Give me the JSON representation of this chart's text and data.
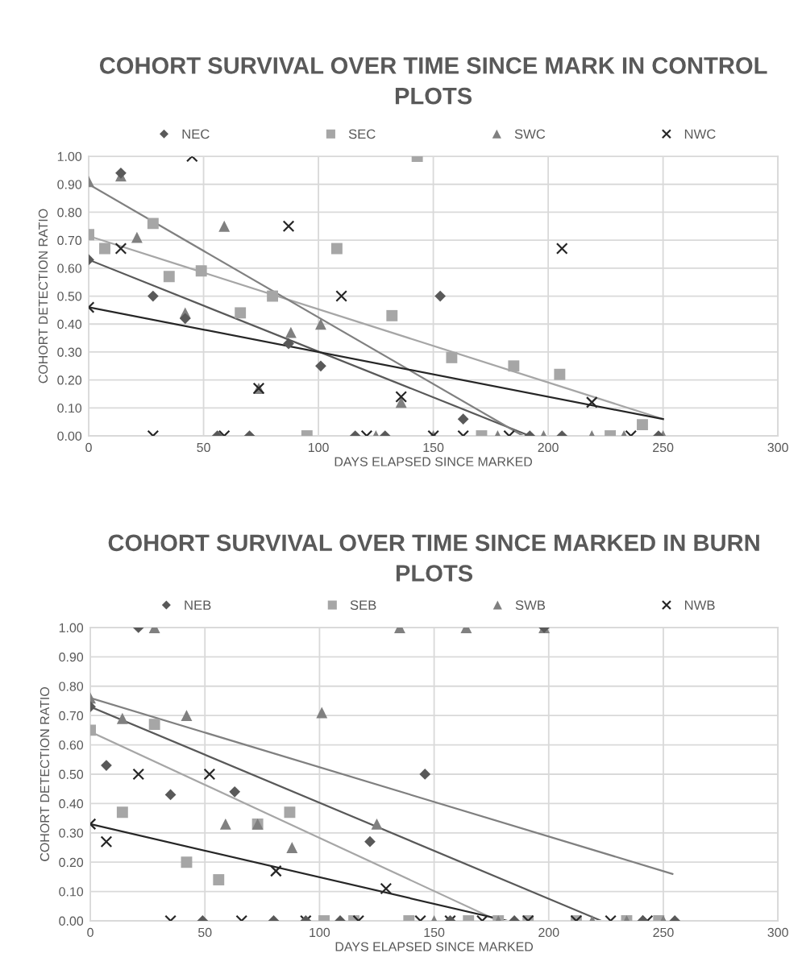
{
  "chart_data": [
    {
      "type": "scatter",
      "title": "COHORT SURVIVAL OVER TIME SINCE MARK IN CONTROL PLOTS",
      "xlabel": "DAYS ELAPSED SINCE MARKED",
      "ylabel": "COHORT DETECTION RATIO",
      "xlim": [
        0,
        300
      ],
      "xticks": [
        0,
        50,
        100,
        150,
        200,
        250,
        300
      ],
      "ylim": [
        0,
        1
      ],
      "yticks": [
        {
          "value": 0,
          "label": "0.00"
        },
        {
          "value": 0.1,
          "label": "0.10"
        },
        {
          "value": 0.2,
          "label": "0.20"
        },
        {
          "value": 0.3,
          "label": "0.30"
        },
        {
          "value": 0.4,
          "label": "0.40"
        },
        {
          "value": 0.5,
          "label": "0.50"
        },
        {
          "value": 0.6,
          "label": "0.60"
        },
        {
          "value": 0.7,
          "label": "0.70"
        },
        {
          "value": 0.8,
          "label": "0.80"
        },
        {
          "value": 0.9,
          "label": "0.90"
        },
        {
          "value": 1,
          "label": "1.00"
        }
      ],
      "grid": true,
      "legend": "top",
      "series": [
        {
          "name": "NEC",
          "color": "#595959",
          "marker": "diamond",
          "x": [
            0,
            14,
            28,
            42,
            56,
            70,
            87,
            101,
            116,
            129,
            153,
            163,
            192,
            206,
            248
          ],
          "values": [
            0.63,
            0.94,
            0.5,
            0.42,
            0,
            0,
            0.33,
            0.25,
            0,
            0,
            0.5,
            0.06,
            0,
            0,
            0
          ]
        },
        {
          "name": "SEC",
          "color": "#a6a6a6",
          "marker": "square",
          "x": [
            0,
            7,
            28,
            35,
            49,
            66,
            80,
            95,
            108,
            132,
            143,
            158,
            171,
            185,
            205,
            227,
            241
          ],
          "values": [
            0.72,
            0.67,
            0.76,
            0.57,
            0.59,
            0.44,
            0.5,
            0,
            0.67,
            0.43,
            1.0,
            0.28,
            0,
            0.25,
            0.22,
            0,
            0.04
          ]
        },
        {
          "name": "SWC",
          "color": "#808080",
          "marker": "triangle",
          "x": [
            0,
            14,
            21,
            42,
            59,
            74,
            88,
            101,
            125,
            136,
            150,
            178,
            198,
            219,
            233,
            250
          ],
          "values": [
            0.91,
            0.93,
            0.71,
            0.44,
            0.75,
            0.17,
            0.37,
            0.4,
            0,
            0.12,
            0,
            0,
            0,
            0,
            0,
            0
          ]
        },
        {
          "name": "NWC",
          "color": "#262626",
          "marker": "cross",
          "x": [
            0,
            14,
            28,
            45,
            59,
            74,
            87,
            110,
            121,
            136,
            150,
            163,
            183,
            206,
            219,
            236
          ],
          "values": [
            0.46,
            0.67,
            0,
            1.0,
            0,
            0.17,
            0.75,
            0.5,
            0,
            0.14,
            0,
            0,
            0,
            0.67,
            0.12,
            0
          ]
        },
        {
          "type": "line",
          "color": "#595959",
          "x": [
            0,
            192
          ],
          "values": [
            0.63,
            0
          ]
        },
        {
          "type": "line",
          "color": "#a6a6a6",
          "x": [
            0,
            250
          ],
          "values": [
            0.715,
            0.06
          ]
        },
        {
          "type": "line",
          "color": "#808080",
          "x": [
            0,
            189
          ],
          "values": [
            0.9,
            0
          ]
        },
        {
          "type": "line",
          "color": "#262626",
          "x": [
            0,
            250
          ],
          "values": [
            0.46,
            0.06
          ]
        }
      ]
    },
    {
      "type": "scatter",
      "title": "COHORT SURVIVAL OVER TIME SINCE MARKED IN BURN PLOTS",
      "xlabel": "DAYS ELAPSED SINCE MARKED",
      "ylabel": "COHORT DETECTION RATIO",
      "xlim": [
        0,
        300
      ],
      "xticks": [
        0,
        50,
        100,
        150,
        200,
        250,
        300
      ],
      "ylim": [
        0,
        1
      ],
      "yticks": [
        {
          "value": 0,
          "label": "0.00"
        },
        {
          "value": 0.1,
          "label": "0.10"
        },
        {
          "value": 0.2,
          "label": "0.20"
        },
        {
          "value": 0.3,
          "label": "0.30"
        },
        {
          "value": 0.4,
          "label": "0.40"
        },
        {
          "value": 0.5,
          "label": "0.50"
        },
        {
          "value": 0.6,
          "label": "0.60"
        },
        {
          "value": 0.7,
          "label": "0.70"
        },
        {
          "value": 0.8,
          "label": "0.80"
        },
        {
          "value": 0.9,
          "label": "0.90"
        },
        {
          "value": 1,
          "label": "1.00"
        }
      ],
      "grid": true,
      "legend": "top",
      "series": [
        {
          "name": "NEB",
          "color": "#595959",
          "marker": "diamond",
          "x": [
            0,
            7,
            21,
            35,
            49,
            63,
            80,
            94,
            109,
            122,
            146,
            157,
            185,
            198,
            241,
            255
          ],
          "values": [
            0.73,
            0.53,
            1.0,
            0.43,
            0,
            0.44,
            0,
            0,
            0,
            0.27,
            0.5,
            0,
            0,
            1.0,
            0,
            0
          ]
        },
        {
          "name": "SEB",
          "color": "#a6a6a6",
          "marker": "square",
          "x": [
            0,
            14,
            28,
            42,
            56,
            73,
            87,
            102,
            115,
            139,
            165,
            178,
            191,
            212,
            234,
            248
          ],
          "values": [
            0.65,
            0.37,
            0.67,
            0.2,
            0.14,
            0.33,
            0.37,
            0,
            0,
            0,
            0,
            0,
            0,
            0,
            0,
            0
          ]
        },
        {
          "name": "SWB",
          "color": "#808080",
          "marker": "triangle",
          "x": [
            0,
            14,
            28,
            42,
            59,
            73,
            88,
            101,
            125,
            135,
            150,
            164,
            178,
            198,
            219,
            234,
            250
          ],
          "values": [
            0.76,
            0.69,
            1.0,
            0.7,
            0.33,
            0.33,
            0.25,
            0.71,
            0.33,
            1.0,
            0,
            1.0,
            0,
            1.0,
            0,
            0,
            0
          ]
        },
        {
          "name": "NWB",
          "color": "#262626",
          "marker": "cross",
          "x": [
            0,
            7,
            21,
            35,
            52,
            66,
            81,
            94,
            117,
            129,
            144,
            157,
            171,
            191,
            212,
            227,
            243
          ],
          "values": [
            0.33,
            0.27,
            0.5,
            0,
            0.5,
            0,
            0.17,
            0,
            0,
            0.11,
            0,
            0,
            0,
            0,
            0,
            0,
            0
          ]
        },
        {
          "type": "line",
          "color": "#595959",
          "x": [
            0,
            223
          ],
          "values": [
            0.73,
            0
          ]
        },
        {
          "type": "line",
          "color": "#a6a6a6",
          "x": [
            0,
            178
          ],
          "values": [
            0.645,
            0
          ]
        },
        {
          "type": "line",
          "color": "#808080",
          "x": [
            0,
            254
          ],
          "values": [
            0.76,
            0.16
          ]
        },
        {
          "type": "line",
          "color": "#262626",
          "x": [
            0,
            182
          ],
          "values": [
            0.33,
            0
          ]
        }
      ]
    }
  ]
}
